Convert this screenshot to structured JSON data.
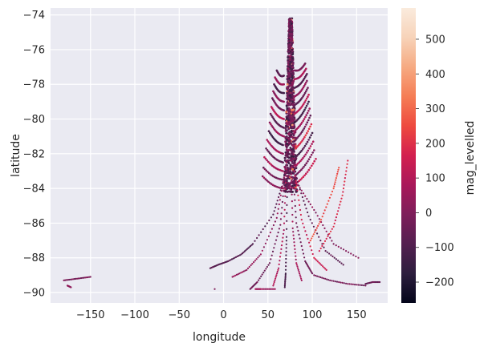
{
  "chart_data": {
    "type": "scatter",
    "title": "",
    "xlabel": "longitude",
    "ylabel": "latitude",
    "xlim": [
      -195,
      185
    ],
    "ylim": [
      -90.6,
      -73.6
    ],
    "xticks": [
      -150,
      -100,
      -50,
      0,
      50,
      100,
      150
    ],
    "xtick_labels": [
      "−150",
      "−100",
      "−50",
      "0",
      "50",
      "100",
      "150"
    ],
    "yticks": [
      -90,
      -88,
      -86,
      -84,
      -82,
      -80,
      -78,
      -76,
      -74
    ],
    "ytick_labels": [
      "−90",
      "−88",
      "−86",
      "−84",
      "−82",
      "−80",
      "−78",
      "−76",
      "−74"
    ],
    "grid": true,
    "colorbar": {
      "label": "mag_levelled",
      "range": [
        -260,
        590
      ],
      "ticks": [
        -200,
        -100,
        0,
        100,
        200,
        300,
        400,
        500
      ],
      "tick_labels": [
        "−200",
        "−100",
        "0",
        "100",
        "200",
        "300",
        "400",
        "500"
      ],
      "colormap": [
        "#03051a",
        "#2d1e3e",
        "#541f50",
        "#7d1e5a",
        "#a9185a",
        "#d31f4f",
        "#ee4a3f",
        "#f57d55",
        "#f6aa82",
        "#f7d3b9",
        "#faebdd"
      ]
    },
    "dense_block": {
      "x_range": [
        68,
        83
      ],
      "y_range": [
        -84.2,
        -74.2
      ],
      "color_value": -60
    },
    "tracks": [
      {
        "x": [
          68,
          56,
          33,
          20,
          5,
          -6,
          -15
        ],
        "y": [
          -83.5,
          -85.5,
          -87.2,
          -87.8,
          -88.2,
          -88.4,
          -88.6
        ],
        "value": -80
      },
      {
        "x": [
          69,
          60,
          42,
          26,
          10
        ],
        "y": [
          -83.1,
          -85.7,
          -87.8,
          -88.7,
          -89.1
        ],
        "value": 40
      },
      {
        "x": [
          70,
          64,
          52,
          38,
          30
        ],
        "y": [
          -82.8,
          -86.1,
          -88.3,
          -89.4,
          -89.8
        ],
        "value": -40
      },
      {
        "x": [
          71,
          68,
          62,
          56
        ],
        "y": [
          -82.5,
          -86.4,
          -88.6,
          -89.6
        ],
        "value": 100
      },
      {
        "x": [
          72,
          71,
          70,
          69
        ],
        "y": [
          -82.2,
          -86.8,
          -88.9,
          -89.7
        ],
        "value": -110
      },
      {
        "x": [
          76,
          78,
          82,
          88
        ],
        "y": [
          -82.4,
          -86.3,
          -88.3,
          -89.3
        ],
        "value": 60
      },
      {
        "x": [
          78,
          82,
          92,
          100
        ],
        "y": [
          -82.7,
          -86.0,
          -88.2,
          -88.9
        ],
        "value": -30
      },
      {
        "x": [
          80,
          88,
          102,
          116
        ],
        "y": [
          -83.0,
          -85.8,
          -88.0,
          -88.7
        ],
        "value": 150
      },
      {
        "x": [
          82,
          96,
          115,
          135
        ],
        "y": [
          -83.4,
          -85.6,
          -87.6,
          -88.4
        ],
        "value": -70
      },
      {
        "x": [
          84,
          104,
          124,
          152
        ],
        "y": [
          -83.8,
          -85.4,
          -87.2,
          -88.0
        ],
        "value": 20
      },
      {
        "x": [
          108,
          124,
          134,
          140
        ],
        "y": [
          -87.6,
          -86.2,
          -84.4,
          -82.4
        ],
        "value": 180
      },
      {
        "x": [
          98,
          110,
          124,
          130
        ],
        "y": [
          -87.0,
          -85.8,
          -84.0,
          -82.8
        ],
        "value": 250
      },
      {
        "x": [
          102,
          120,
          140,
          160
        ],
        "y": [
          -89.0,
          -89.3,
          -89.5,
          -89.6
        ],
        "value": -20
      },
      {
        "x": [
          -180,
          -165,
          -150
        ],
        "y": [
          -89.3,
          -89.2,
          -89.1
        ],
        "value": -10
      },
      {
        "x": [
          -176,
          -172
        ],
        "y": [
          -89.6,
          -89.7
        ],
        "value": 30
      },
      {
        "x": [
          160,
          168,
          176
        ],
        "y": [
          -89.5,
          -89.4,
          -89.4
        ],
        "value": -50
      },
      {
        "x": [
          -10
        ],
        "y": [
          -89.8
        ],
        "value": 0
      },
      {
        "x": [
          36,
          42,
          58
        ],
        "y": [
          -89.8,
          -89.8,
          -89.8
        ],
        "value": 60
      }
    ],
    "fins": [
      {
        "x0": 80,
        "y0": -77.2,
        "x1": 92,
        "y1": -76.8,
        "value": -20
      },
      {
        "x0": 80,
        "y0": -77.7,
        "x1": 93,
        "y1": -77.1,
        "value": 90
      },
      {
        "x0": 80,
        "y0": -78.2,
        "x1": 94,
        "y1": -77.4,
        "value": -90
      },
      {
        "x0": 80,
        "y0": -78.7,
        "x1": 94,
        "y1": -77.8,
        "value": 40
      },
      {
        "x0": 80,
        "y0": -79.2,
        "x1": 95,
        "y1": -78.2,
        "value": -60
      },
      {
        "x0": 80,
        "y0": -79.7,
        "x1": 96,
        "y1": -78.6,
        "value": 120
      },
      {
        "x0": 80,
        "y0": -80.2,
        "x1": 96,
        "y1": -79.0,
        "value": -130
      },
      {
        "x0": 80,
        "y0": -80.7,
        "x1": 97,
        "y1": -79.4,
        "value": 60
      },
      {
        "x0": 81,
        "y0": -81.2,
        "x1": 98,
        "y1": -79.8,
        "value": -40
      },
      {
        "x0": 81,
        "y0": -81.7,
        "x1": 99,
        "y1": -80.3,
        "value": 200
      },
      {
        "x0": 81,
        "y0": -82.2,
        "x1": 100,
        "y1": -80.8,
        "value": -100
      },
      {
        "x0": 81,
        "y0": -82.7,
        "x1": 101,
        "y1": -81.3,
        "value": 80
      },
      {
        "x0": 82,
        "y0": -83.2,
        "x1": 102,
        "y1": -81.8,
        "value": -20
      },
      {
        "x0": 82,
        "y0": -83.7,
        "x1": 104,
        "y1": -82.3,
        "value": 140
      },
      {
        "x0": 68,
        "y0": -77.5,
        "x1": 60,
        "y1": -77.2,
        "value": -60
      },
      {
        "x0": 68,
        "y0": -78.0,
        "x1": 58,
        "y1": -77.6,
        "value": 60
      },
      {
        "x0": 68,
        "y0": -78.5,
        "x1": 57,
        "y1": -78.0,
        "value": -120
      },
      {
        "x0": 68,
        "y0": -79.0,
        "x1": 56,
        "y1": -78.4,
        "value": 20
      },
      {
        "x0": 68,
        "y0": -79.5,
        "x1": 55,
        "y1": -78.8,
        "value": -30
      },
      {
        "x0": 68,
        "y0": -80.0,
        "x1": 54,
        "y1": -79.3,
        "value": 110
      },
      {
        "x0": 68,
        "y0": -80.5,
        "x1": 53,
        "y1": -79.7,
        "value": -80
      },
      {
        "x0": 68,
        "y0": -81.0,
        "x1": 52,
        "y1": -80.2,
        "value": 40
      },
      {
        "x0": 67,
        "y0": -81.5,
        "x1": 51,
        "y1": -80.7,
        "value": -140
      },
      {
        "x0": 67,
        "y0": -82.0,
        "x1": 49,
        "y1": -81.2,
        "value": 70
      },
      {
        "x0": 67,
        "y0": -82.5,
        "x1": 48,
        "y1": -81.7,
        "value": -50
      },
      {
        "x0": 67,
        "y0": -83.0,
        "x1": 46,
        "y1": -82.2,
        "value": 90
      },
      {
        "x0": 67,
        "y0": -83.5,
        "x1": 45,
        "y1": -82.8,
        "value": -20
      },
      {
        "x0": 67,
        "y0": -84.0,
        "x1": 44,
        "y1": -83.3,
        "value": 30
      }
    ]
  }
}
